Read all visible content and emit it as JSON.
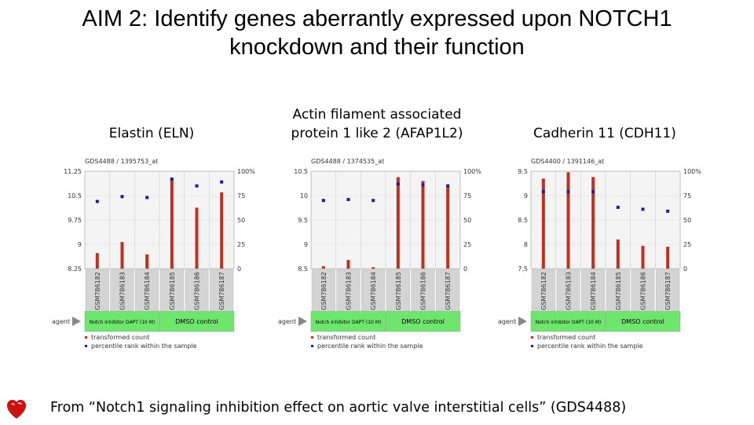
{
  "slide": {
    "title_line1": "AIM 2: Identify genes aberrantly expressed upon NOTCH1",
    "title_line2": "knockdown and their function",
    "panel_titles": {
      "eln": "Elastin (ELN)",
      "afap_line1": "Actin filament associated",
      "afap_line2": "protein 1 like 2 (AFAP1L2)",
      "cdh11": "Cadherin 11 (CDH11)"
    },
    "footer": "From “Notch1 signaling inhibition effect on aortic valve interstitial cells” (GDS4488)"
  },
  "colors": {
    "bar": "#c0301e",
    "point": "#1a1ab0",
    "plot_bg": "#f4f4f4",
    "sample_bg": "#d4d4d4",
    "agent_green": "#6ee66e",
    "arrow": "#888888"
  },
  "chart_data": [
    {
      "type": "bar",
      "header": "GDS4488 / 1395753_at",
      "categories": [
        "GSM786182",
        "GSM786183",
        "GSM786184",
        "GSM786185",
        "GSM786186",
        "GSM786187"
      ],
      "series": [
        {
          "name": "transformed count",
          "values": [
            8.73,
            9.07,
            8.69,
            11.02,
            10.13,
            10.6
          ]
        },
        {
          "name": "percentile rank within the sample",
          "values": [
            69,
            74,
            73,
            92,
            85,
            89
          ]
        }
      ],
      "y_left_ticks": [
        "11.25",
        "10.5",
        "9.75",
        "9",
        "8.25"
      ],
      "ylim_left": [
        8.25,
        11.25
      ],
      "y_right_ticks": [
        "100%",
        "75",
        "50",
        "25",
        "0"
      ],
      "ylim_right": [
        0,
        100
      ],
      "agent_label": "agent",
      "groups": [
        "Notch inhibitor DAPT (10 M)",
        "DMSO control"
      ],
      "legend": [
        "transformed count",
        "percentile rank within the sample"
      ]
    },
    {
      "type": "bar",
      "header": "GDS4488 / 1374535_at",
      "categories": [
        "GSM786182",
        "GSM786183",
        "GSM786184",
        "GSM786185",
        "GSM786186",
        "GSM786187"
      ],
      "series": [
        {
          "name": "transformed count",
          "values": [
            8.55,
            8.68,
            8.53,
            10.38,
            10.3,
            10.22
          ]
        },
        {
          "name": "percentile rank within the sample",
          "values": [
            70,
            71,
            70,
            87,
            86,
            85
          ]
        }
      ],
      "y_left_ticks": [
        "10.5",
        "10",
        "9.5",
        "9",
        "8.5"
      ],
      "ylim_left": [
        8.5,
        10.5
      ],
      "y_right_ticks": [
        "100%",
        "75",
        "50",
        "25",
        "0"
      ],
      "ylim_right": [
        0,
        100
      ],
      "agent_label": "agent",
      "groups": [
        "Notch inhibitor DAPT (10 M)",
        "DMSO control"
      ],
      "legend": [
        "transformed count",
        "percentile rank within the sample"
      ]
    },
    {
      "type": "bar",
      "header": "GDS4400 / 1391146_at",
      "categories": [
        "GSM786182",
        "GSM786183",
        "GSM786184",
        "GSM786185",
        "GSM786186",
        "GSM786187"
      ],
      "series": [
        {
          "name": "transformed count",
          "values": [
            9.35,
            9.48,
            9.38,
            8.1,
            7.97,
            7.95
          ]
        },
        {
          "name": "percentile rank within the sample",
          "values": [
            79,
            79,
            79,
            63,
            61,
            59
          ]
        }
      ],
      "y_left_ticks": [
        "9.5",
        "9",
        "8.5",
        "8",
        "7.5"
      ],
      "ylim_left": [
        7.5,
        9.5
      ],
      "y_right_ticks": [
        "100%",
        "75",
        "50",
        "25",
        "0"
      ],
      "ylim_right": [
        0,
        100
      ],
      "agent_label": "agent",
      "groups": [
        "Notch inhibitor DAPT (10 M)",
        "DMSO control"
      ],
      "legend": [
        "transformed count",
        "percentile rank within the sample"
      ]
    }
  ]
}
